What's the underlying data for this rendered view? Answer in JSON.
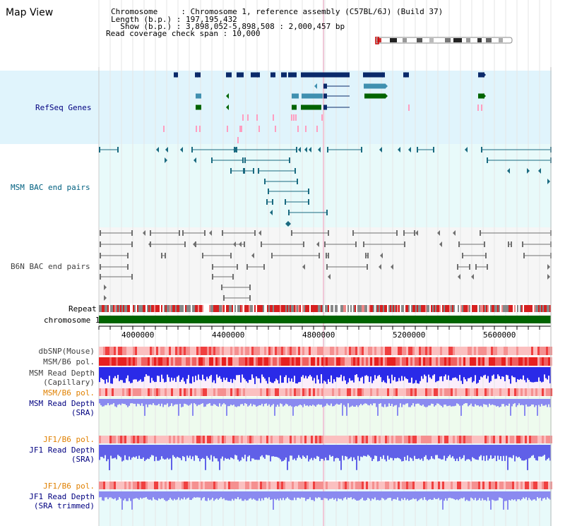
{
  "title": "Map View",
  "header": {
    "chromosome_label": "Chromosome     : Chromosome 1, reference assembly (C57BL/6J) (Build 37)",
    "length_label": "Length (b.p.) : 197,195,432",
    "show_label": "  Show (b.p.) : 3,898,052-5,898,508 : 2,000,457 bp",
    "coverage_label": "Read coverage check span : 10,000"
  },
  "tracks": {
    "refseq": "RefSeq Genes",
    "msm_bac": "MSM BAC end pairs",
    "b6n_bac": "B6N BAC end pairs",
    "repeat": "Repeat",
    "chromosome": "chromosome 1",
    "dbsnp": "dbSNP(Mouse)",
    "msm_b6_pol_1": "MSM/B6 pol.",
    "msm_read_depth_cap_1": "MSM Read Depth",
    "msm_read_depth_cap_2": "(Capillary)",
    "msm_b6_pol_2": "MSM/B6 pol.",
    "msm_read_depth_sra_1": "MSM Read Depth",
    "msm_read_depth_sra_2": "(SRA)",
    "jf1_b6_pol_1": "JF1/B6 pol.",
    "jf1_read_depth_sra_1": "JF1 Read Depth",
    "jf1_read_depth_sra_2": "(SRA)",
    "jf1_b6_pol_2": "JF1/B6 pol.",
    "jf1_read_depth_trim_1": "JF1 Read Depth",
    "jf1_read_depth_trim_2": "(SRA trimmed)"
  },
  "axis": {
    "ticks": [
      "4000000",
      "4400000",
      "4800000",
      "5200000",
      "5600000"
    ]
  },
  "colors": {
    "refseq_bg": "#e0f4fc",
    "msm_bg": "#e8fafa",
    "b6n_bg": "#f4f4f4",
    "gene_navy": "#0a2a6a",
    "gene_teal": "#4090b0",
    "gene_green": "#006400",
    "gene_pink": "#ff9ec0",
    "bac_teal": "#1a6a80",
    "bac_gray": "#707070",
    "chrom_green": "#006400",
    "depth_blue": "#3a3af0",
    "depth_blue_light": "#8080f0"
  }
}
